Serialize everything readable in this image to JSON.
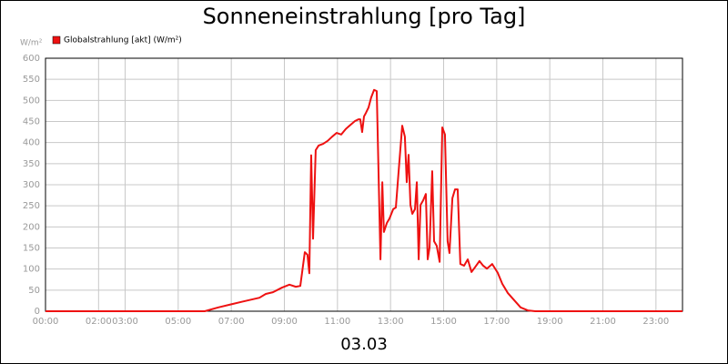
{
  "chart_data": {
    "type": "line",
    "title": "Sonneneinstrahlung [pro Tag]",
    "y_unit": "W/m²",
    "x_label": "03.03",
    "xlim": [
      0,
      24
    ],
    "ylim": [
      0,
      600
    ],
    "xticks": [
      {
        "value": 0,
        "label": "00:00"
      },
      {
        "value": 2,
        "label": "02:00"
      },
      {
        "value": 3,
        "label": "03:00"
      },
      {
        "value": 5,
        "label": "05:00"
      },
      {
        "value": 7,
        "label": "07:00"
      },
      {
        "value": 9,
        "label": "09:00"
      },
      {
        "value": 11,
        "label": "11:00"
      },
      {
        "value": 13,
        "label": "13:00"
      },
      {
        "value": 15,
        "label": "15:00"
      },
      {
        "value": 17,
        "label": "17:00"
      },
      {
        "value": 19,
        "label": "19:00"
      },
      {
        "value": 21,
        "label": "21:00"
      },
      {
        "value": 23,
        "label": "23:00"
      }
    ],
    "yticks": [
      0,
      50,
      100,
      150,
      200,
      250,
      300,
      350,
      400,
      450,
      500,
      550,
      600
    ],
    "grid": true,
    "x": [
      0,
      6.0,
      6.51,
      7.37,
      8.06,
      8.3,
      8.57,
      8.91,
      9.19,
      9.43,
      9.6,
      9.77,
      9.87,
      9.94,
      10.01,
      10.08,
      10.18,
      10.29,
      10.46,
      10.63,
      10.8,
      10.97,
      11.14,
      11.31,
      11.49,
      11.66,
      11.79,
      11.86,
      11.93,
      12.0,
      12.07,
      12.17,
      12.27,
      12.38,
      12.48,
      12.62,
      12.69,
      12.75,
      12.86,
      12.96,
      13.1,
      13.2,
      13.3,
      13.44,
      13.54,
      13.61,
      13.68,
      13.75,
      13.82,
      13.92,
      13.99,
      14.06,
      14.13,
      14.23,
      14.33,
      14.4,
      14.47,
      14.57,
      14.64,
      14.74,
      14.85,
      14.95,
      15.05,
      15.15,
      15.22,
      15.33,
      15.43,
      15.53,
      15.63,
      15.77,
      15.91,
      16.05,
      16.18,
      16.35,
      16.49,
      16.63,
      16.83,
      17.04,
      17.21,
      17.42,
      17.66,
      17.9,
      18.17,
      18.45,
      24
    ],
    "series": [
      {
        "name": "Globalstrahlung [akt] (W/m²)",
        "color": "#ee1111",
        "values": [
          0,
          0,
          9,
          22,
          32,
          41,
          45,
          56,
          63,
          58,
          60,
          140,
          134,
          90,
          370,
          172,
          382,
          393,
          397,
          404,
          414,
          423,
          419,
          432,
          442,
          451,
          455,
          455,
          425,
          462,
          470,
          483,
          507,
          525,
          522,
          123,
          306,
          188,
          209,
          220,
          242,
          246,
          328,
          440,
          414,
          306,
          371,
          252,
          231,
          242,
          306,
          123,
          252,
          263,
          278,
          123,
          151,
          332,
          166,
          155,
          117,
          436,
          419,
          166,
          138,
          268,
          289,
          289,
          112,
          108,
          123,
          93,
          104,
          119,
          108,
          101,
          112,
          91,
          65,
          43,
          26,
          9,
          2,
          0,
          0
        ]
      }
    ]
  }
}
